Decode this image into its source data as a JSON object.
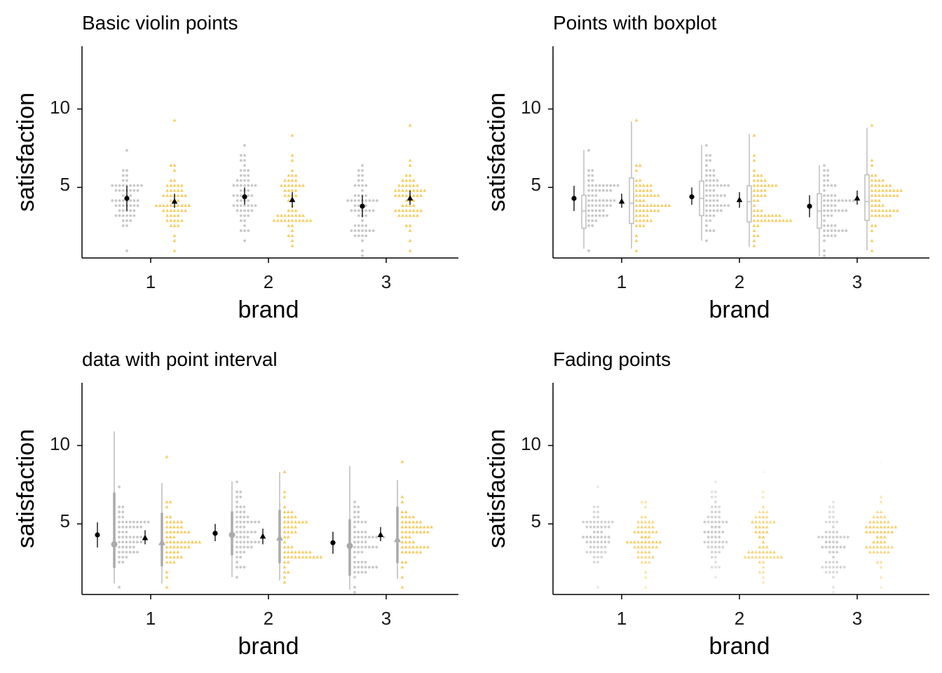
{
  "chart_data": [
    {
      "type": "scatter",
      "title": "Basic violin points",
      "xlabel": "brand",
      "ylabel": "satisfaction",
      "categories": [
        "1",
        "2",
        "3"
      ],
      "yticks": [
        5,
        10
      ],
      "ylim": [
        0.5,
        14
      ],
      "grid": false,
      "legend": "none",
      "style": "violin-points",
      "series": [
        {
          "color": "#c8c8c8",
          "shape": "circle",
          "means": [
            4.3,
            4.4,
            3.8
          ],
          "ci": [
            [
              3.5,
              5.1
            ],
            [
              3.9,
              5.0
            ],
            [
              3.1,
              4.5
            ]
          ]
        },
        {
          "color": "#f5cc5e",
          "shape": "triangle",
          "means": [
            4.1,
            4.2,
            4.3
          ],
          "ci": [
            [
              3.7,
              4.6
            ],
            [
              3.7,
              4.7
            ],
            [
              3.9,
              4.8
            ]
          ]
        }
      ]
    },
    {
      "type": "scatter",
      "title": "Points with boxplot",
      "xlabel": "brand",
      "ylabel": "satisfaction",
      "categories": [
        "1",
        "2",
        "3"
      ],
      "yticks": [
        5,
        10
      ],
      "ylim": [
        0.5,
        14
      ],
      "grid": false,
      "legend": "none",
      "style": "points-boxplot",
      "series": [
        {
          "color": "#c8c8c8",
          "shape": "circle",
          "means": [
            4.3,
            4.4,
            3.8
          ],
          "ci": [
            [
              3.5,
              5.1
            ],
            [
              3.9,
              5.0
            ],
            [
              3.1,
              4.5
            ]
          ],
          "box": [
            [
              1.1,
              2.4,
              3.5,
              4.5,
              7.4
            ],
            [
              1.6,
              3.2,
              4.3,
              5.4,
              7.7
            ],
            [
              0.6,
              2.4,
              3.5,
              4.6,
              6.4
            ]
          ]
        },
        {
          "color": "#f5cc5e",
          "shape": "triangle",
          "means": [
            4.1,
            4.2,
            4.3
          ],
          "ci": [
            [
              3.7,
              4.6
            ],
            [
              3.7,
              4.7
            ],
            [
              3.9,
              4.8
            ]
          ],
          "box": [
            [
              1.1,
              2.7,
              4.0,
              5.6,
              9.2
            ],
            [
              1.2,
              2.8,
              4.1,
              5.1,
              8.4
            ],
            [
              1.0,
              2.9,
              4.1,
              5.8,
              8.8
            ]
          ]
        }
      ]
    },
    {
      "type": "scatter",
      "title": "data with point interval",
      "xlabel": "brand",
      "ylabel": "satisfaction",
      "categories": [
        "1",
        "2",
        "3"
      ],
      "yticks": [
        5,
        10
      ],
      "ylim": [
        0.5,
        14
      ],
      "grid": false,
      "legend": "none",
      "style": "points-interval",
      "series": [
        {
          "color": "#c8c8c8",
          "shape": "circle",
          "means": [
            4.3,
            4.4,
            3.8
          ],
          "ci": [
            [
              3.5,
              5.1
            ],
            [
              3.9,
              5.0
            ],
            [
              3.1,
              4.5
            ]
          ],
          "interval": [
            [
              3.7,
              2.2,
              7.0,
              1.2,
              10.9
            ],
            [
              4.3,
              3.0,
              5.8,
              1.6,
              7.7
            ],
            [
              3.6,
              1.7,
              5.3,
              0.8,
              8.7
            ]
          ]
        },
        {
          "color": "#f5cc5e",
          "shape": "triangle",
          "means": [
            4.1,
            4.2,
            4.3
          ],
          "ci": [
            [
              3.7,
              4.6
            ],
            [
              3.7,
              4.7
            ],
            [
              3.9,
              4.8
            ]
          ],
          "interval": [
            [
              3.8,
              2.3,
              5.7,
              1.2,
              7.6
            ],
            [
              4.1,
              2.5,
              5.9,
              1.4,
              8.3
            ],
            [
              4.0,
              2.5,
              6.1,
              1.5,
              7.8
            ]
          ]
        }
      ]
    },
    {
      "type": "scatter",
      "title": "Fading points",
      "xlabel": "brand",
      "ylabel": "satisfaction",
      "categories": [
        "1",
        "2",
        "3"
      ],
      "yticks": [
        5,
        10
      ],
      "ylim": [
        0.5,
        14
      ],
      "grid": false,
      "legend": "none",
      "style": "fading-points",
      "series": [
        {
          "color": "#c8c8c8",
          "shape": "circle"
        },
        {
          "color": "#f5cc5e",
          "shape": "triangle"
        }
      ]
    }
  ]
}
